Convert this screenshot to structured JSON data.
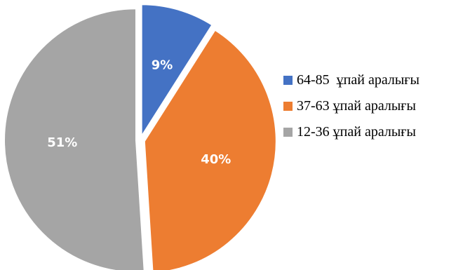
{
  "chart_data": {
    "type": "pie",
    "slices": [
      {
        "label": "64-85  ұпай аралығы",
        "value": 9,
        "value_label": "9%",
        "color": "#4472C4"
      },
      {
        "label": "37-63 ұпай аралығы",
        "value": 40,
        "value_label": "40%",
        "color": "#ED7D31"
      },
      {
        "label": "12-36 ұпай аралығы",
        "value": 51,
        "value_label": "51%",
        "color": "#A5A5A5"
      }
    ],
    "start_angle": "12 o'clock",
    "direction": "clockwise",
    "legend_position": "right"
  }
}
